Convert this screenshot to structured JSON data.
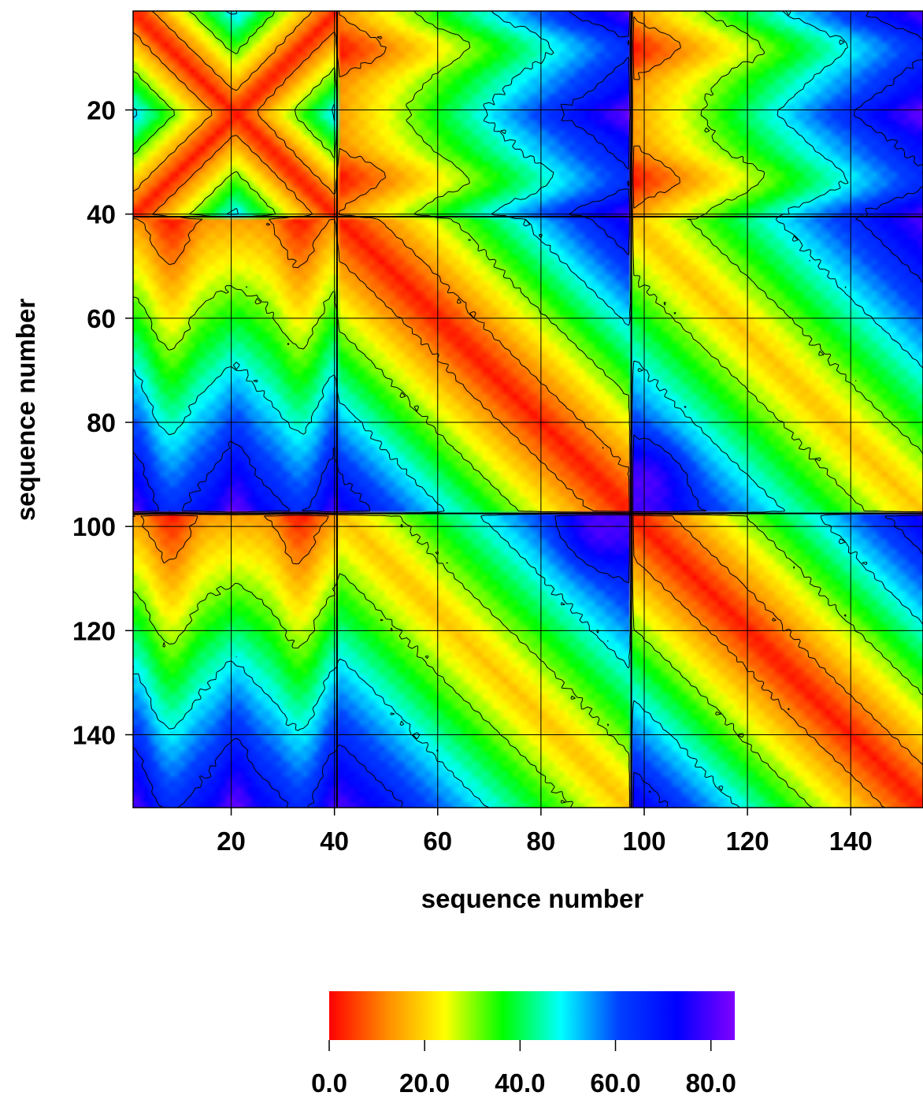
{
  "chart_data": {
    "type": "heatmap",
    "title": "",
    "xlabel": "sequence number",
    "ylabel": "sequence number",
    "xlim": [
      1,
      154
    ],
    "ylim": [
      1,
      154
    ],
    "y_inverted": true,
    "x_ticks": [
      20,
      40,
      60,
      80,
      100,
      120,
      140
    ],
    "x_tick_labels": [
      "20",
      "40",
      "60",
      "80",
      "100",
      "120",
      "140"
    ],
    "y_ticks": [
      20,
      40,
      60,
      80,
      100,
      120,
      140
    ],
    "y_tick_labels": [
      "20",
      "40",
      "60",
      "80",
      "100",
      "120",
      "140"
    ],
    "grid": true,
    "contours": true,
    "block_boundaries": [
      1,
      40.5,
      97.5,
      154
    ],
    "value_range": [
      0,
      85
    ],
    "colorbar": {
      "placement": "bottom",
      "ticks": [
        0,
        20,
        40,
        60,
        80
      ],
      "tick_labels": [
        "0.0",
        "20.0",
        "40.0",
        "60.0",
        "80.0"
      ],
      "colors": [
        "#ff0000",
        "#ff8c00",
        "#ffff00",
        "#00ff00",
        "#00ffff",
        "#0040ff",
        "#0000ff",
        "#8000ff"
      ]
    }
  }
}
